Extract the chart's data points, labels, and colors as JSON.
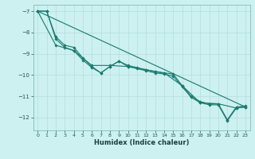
{
  "xlabel": "Humidex (Indice chaleur)",
  "bg_color": "#cdf0f0",
  "line_color": "#1a7a6e",
  "grid_color": "#b8dede",
  "xlim": [
    -0.5,
    23.5
  ],
  "ylim": [
    -12.6,
    -6.7
  ],
  "yticks": [
    -7,
    -8,
    -9,
    -10,
    -11,
    -12
  ],
  "xticks": [
    0,
    1,
    2,
    3,
    4,
    5,
    6,
    7,
    8,
    9,
    10,
    11,
    12,
    13,
    14,
    15,
    16,
    17,
    18,
    19,
    20,
    21,
    22,
    23
  ],
  "series1": [
    [
      0,
      -7.0
    ],
    [
      1,
      -7.0
    ],
    [
      2,
      -8.2
    ],
    [
      3,
      -8.6
    ],
    [
      4,
      -8.7
    ],
    [
      5,
      -9.2
    ],
    [
      6,
      -9.6
    ],
    [
      7,
      -9.9
    ],
    [
      8,
      -9.6
    ],
    [
      9,
      -9.35
    ],
    [
      10,
      -9.55
    ],
    [
      11,
      -9.65
    ],
    [
      12,
      -9.75
    ],
    [
      13,
      -9.85
    ],
    [
      14,
      -9.9
    ],
    [
      15,
      -9.95
    ],
    [
      16,
      -10.5
    ],
    [
      17,
      -11.0
    ],
    [
      18,
      -11.25
    ],
    [
      19,
      -11.35
    ],
    [
      20,
      -11.35
    ],
    [
      21,
      -12.1
    ],
    [
      22,
      -11.5
    ],
    [
      23,
      -11.45
    ]
  ],
  "series2": [
    [
      0,
      -7.0
    ],
    [
      1,
      -7.0
    ],
    [
      2,
      -8.3
    ],
    [
      3,
      -8.7
    ],
    [
      4,
      -8.85
    ],
    [
      5,
      -9.3
    ],
    [
      6,
      -9.65
    ],
    [
      7,
      -9.9
    ],
    [
      8,
      -9.6
    ],
    [
      9,
      -9.35
    ],
    [
      10,
      -9.6
    ],
    [
      11,
      -9.7
    ],
    [
      12,
      -9.8
    ],
    [
      13,
      -9.9
    ],
    [
      14,
      -9.95
    ],
    [
      15,
      -10.05
    ],
    [
      16,
      -10.55
    ],
    [
      17,
      -11.05
    ],
    [
      18,
      -11.3
    ],
    [
      19,
      -11.4
    ],
    [
      20,
      -11.4
    ],
    [
      21,
      -12.15
    ],
    [
      22,
      -11.55
    ],
    [
      23,
      -11.5
    ]
  ],
  "series3": [
    [
      0,
      -7.0
    ],
    [
      2,
      -8.6
    ],
    [
      4,
      -8.85
    ],
    [
      6,
      -9.55
    ],
    [
      8,
      -9.55
    ],
    [
      10,
      -9.6
    ],
    [
      12,
      -9.75
    ],
    [
      14,
      -9.9
    ],
    [
      16,
      -10.5
    ],
    [
      18,
      -11.3
    ],
    [
      20,
      -11.35
    ],
    [
      22,
      -11.55
    ],
    [
      23,
      -11.5
    ]
  ],
  "straight_line": [
    [
      0,
      -7.0
    ],
    [
      23,
      -11.5
    ]
  ]
}
